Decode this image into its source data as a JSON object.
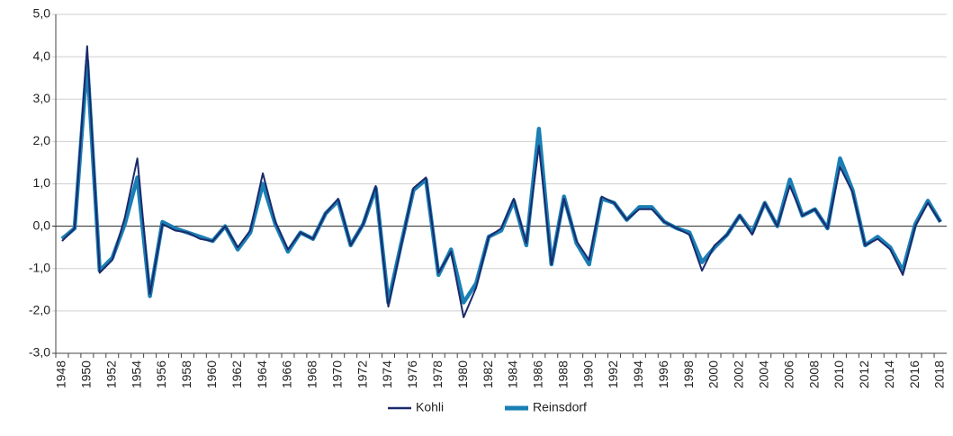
{
  "chart_data": {
    "type": "line",
    "categories": [
      "1948",
      null,
      "1950",
      null,
      "1952",
      null,
      "1954",
      null,
      "1956",
      null,
      "1958",
      null,
      "1960",
      null,
      "1962",
      null,
      "1964",
      null,
      "1966",
      null,
      "1968",
      null,
      "1970",
      null,
      "1972",
      null,
      "1974",
      null,
      "1976",
      null,
      "1978",
      null,
      "1980",
      null,
      "1982",
      null,
      "1984",
      null,
      "1986",
      null,
      "1988",
      null,
      "1990",
      null,
      "1992",
      null,
      "1994",
      null,
      "1996",
      null,
      "1998",
      null,
      "2000",
      null,
      "2002",
      null,
      "2004",
      null,
      "2006",
      null,
      "2008",
      null,
      "2010",
      null,
      "2012",
      null,
      "2014",
      null,
      "2016",
      null,
      "2018"
    ],
    "series": [
      {
        "name": "Kohli",
        "color": "#1b2a6b",
        "values": [
          -0.35,
          -0.05,
          4.25,
          -1.1,
          -0.8,
          0.2,
          1.6,
          -1.6,
          0.05,
          -0.1,
          -0.15,
          -0.3,
          -0.35,
          0.0,
          -0.5,
          -0.1,
          1.25,
          0.1,
          -0.55,
          -0.15,
          -0.3,
          0.3,
          0.65,
          -0.45,
          0.05,
          0.95,
          -1.9,
          -0.5,
          0.9,
          1.15,
          -1.1,
          -0.6,
          -2.15,
          -1.45,
          -0.25,
          -0.05,
          0.65,
          -0.4,
          1.9,
          -0.9,
          0.65,
          -0.35,
          -0.8,
          0.7,
          0.55,
          0.15,
          0.4,
          0.4,
          0.1,
          -0.05,
          -0.2,
          -1.05,
          -0.45,
          -0.2,
          0.25,
          -0.2,
          0.55,
          0.0,
          0.95,
          0.25,
          0.4,
          -0.05,
          1.4,
          0.8,
          -0.45,
          -0.3,
          -0.55,
          -1.15,
          0.0,
          0.55,
          0.1
        ]
      },
      {
        "name": "Reinsdorf",
        "color": "#1a7fb5",
        "values": [
          -0.3,
          -0.05,
          3.9,
          -1.05,
          -0.75,
          0.05,
          1.15,
          -1.65,
          0.1,
          -0.05,
          -0.15,
          -0.25,
          -0.35,
          0.0,
          -0.55,
          -0.15,
          1.0,
          0.05,
          -0.6,
          -0.15,
          -0.3,
          0.3,
          0.6,
          -0.45,
          0.05,
          0.9,
          -1.8,
          -0.45,
          0.85,
          1.1,
          -1.15,
          -0.55,
          -1.8,
          -1.35,
          -0.25,
          -0.1,
          0.6,
          -0.45,
          2.3,
          -0.9,
          0.7,
          -0.4,
          -0.9,
          0.65,
          0.55,
          0.15,
          0.45,
          0.45,
          0.1,
          -0.05,
          -0.15,
          -0.85,
          -0.5,
          -0.2,
          0.25,
          -0.15,
          0.55,
          0.0,
          1.1,
          0.25,
          0.4,
          -0.05,
          1.6,
          0.85,
          -0.45,
          -0.25,
          -0.5,
          -1.05,
          0.05,
          0.6,
          0.1
        ]
      }
    ],
    "ylim": [
      -3,
      5
    ],
    "yticks": [
      {
        "value": -3,
        "label": "-3,0"
      },
      {
        "value": -2,
        "label": "-2,0"
      },
      {
        "value": -1,
        "label": "-1,0"
      },
      {
        "value": 0,
        "label": "0,0"
      },
      {
        "value": 1,
        "label": "1,0"
      },
      {
        "value": 2,
        "label": "2,0"
      },
      {
        "value": 3,
        "label": "3,0"
      },
      {
        "value": 4,
        "label": "4,0"
      },
      {
        "value": 5,
        "label": "5,0"
      }
    ],
    "grid": true,
    "legend": "bottom"
  }
}
